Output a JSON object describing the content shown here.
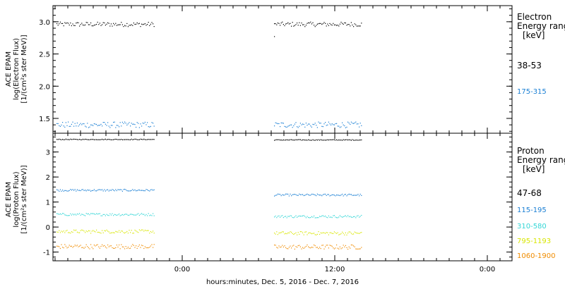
{
  "chart_data": {
    "xlabel": "hours:minutes, Dec.  5, 2016 - Dec.  7, 2016",
    "xticks": [
      "0:00",
      "12:00",
      "0:00"
    ],
    "panels": [
      {
        "type": "scatter",
        "ylabel": [
          "ACE EPAM",
          "log(Electron Flux)",
          "[1/(cm²s ster MeV)]"
        ],
        "ylim": [
          1.27,
          3.25
        ],
        "yticks": [
          "1.5",
          "2.0",
          "2.5",
          "3.0"
        ],
        "legend_title": [
          "Electron",
          "Energy ranges",
          "[keV]"
        ],
        "series": [
          {
            "name": "38-53",
            "color": "#000000",
            "level": 2.96,
            "jitter": 0.035,
            "outlier": 2.77
          },
          {
            "name": "175-315",
            "color": "#1a7fd4",
            "level": 1.4,
            "jitter": 0.045
          }
        ]
      },
      {
        "type": "scatter",
        "ylabel": [
          "ACE EPAM",
          "log(Proton Flux)",
          "[1/(cm²s ster MeV)]"
        ],
        "ylim": [
          -1.35,
          3.75
        ],
        "yticks": [
          "-1",
          "0",
          "1",
          "2",
          "3"
        ],
        "legend_title": [
          "Proton",
          "Energy ranges",
          "[keV]"
        ],
        "series": [
          {
            "name": "47-68",
            "color": "#000000",
            "level": 3.5,
            "level2": 3.48,
            "jitter": 0.015
          },
          {
            "name": "115-195",
            "color": "#1a7fd4",
            "level": 1.47,
            "level2": 1.28,
            "jitter": 0.04
          },
          {
            "name": "310-580",
            "color": "#33d6d6",
            "level": 0.5,
            "level2": 0.42,
            "jitter": 0.05
          },
          {
            "name": "795-1193",
            "color": "#d8e600",
            "level": -0.18,
            "level2": -0.25,
            "jitter": 0.07
          },
          {
            "name": "1060-1900",
            "color": "#f08c00",
            "level": -0.78,
            "level2": -0.8,
            "jitter": 0.09
          }
        ]
      }
    ]
  }
}
